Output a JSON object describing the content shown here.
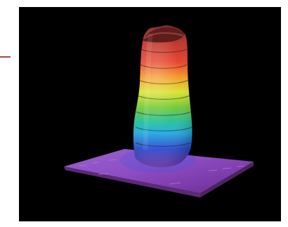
{
  "figure": {
    "kind": "3d-surface-render",
    "subject": "beam-intensity-profile",
    "background_color": "#000000",
    "side_marker_color": "#a3483f",
    "colormap": [
      "#7a2f7a",
      "#8c4bb0",
      "#2d47d6",
      "#2aa7e8",
      "#25c3a0",
      "#7acb30",
      "#d7e22f",
      "#f3a124",
      "#d52e28",
      "#8a2a22"
    ]
  }
}
